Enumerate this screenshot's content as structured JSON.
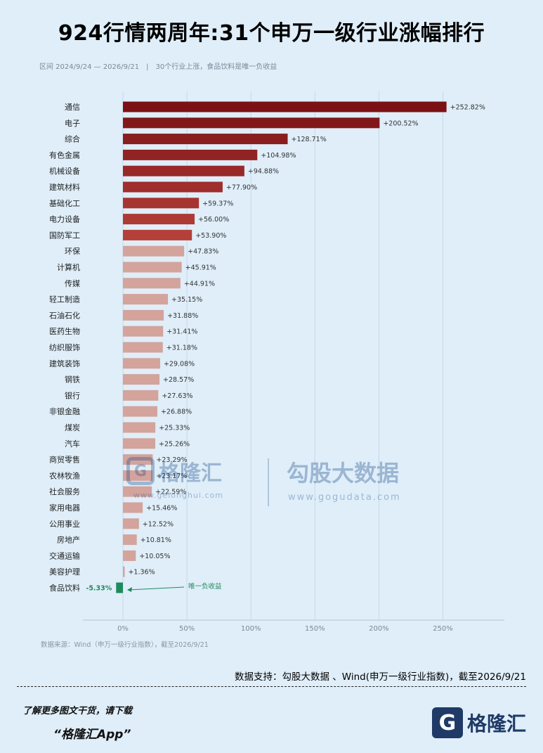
{
  "title": "924行情两周年:31个申万一级行业涨幅排行",
  "subtitle": {
    "range": "区间 2024/9/24 — 2026/9/21",
    "sep": "|",
    "note": "30个行业上涨，食品饮料是唯一负收益"
  },
  "chart_data": {
    "type": "bar",
    "orientation": "horizontal",
    "categories": [
      "通信",
      "电子",
      "综合",
      "有色金属",
      "机械设备",
      "建筑材料",
      "基础化工",
      "电力设备",
      "国防军工",
      "环保",
      "计算机",
      "传媒",
      "轻工制造",
      "石油石化",
      "医药生物",
      "纺织服饰",
      "建筑装饰",
      "钢铁",
      "银行",
      "非银金融",
      "煤炭",
      "汽车",
      "商贸零售",
      "农林牧渔",
      "社会服务",
      "家用电器",
      "公用事业",
      "房地产",
      "交通运输",
      "美容护理",
      "食品饮料"
    ],
    "values": [
      252.82,
      200.52,
      128.71,
      104.98,
      94.88,
      77.9,
      59.37,
      56.0,
      53.9,
      47.83,
      45.91,
      44.91,
      35.15,
      31.88,
      31.41,
      31.18,
      29.08,
      28.57,
      27.63,
      26.88,
      25.33,
      25.26,
      23.29,
      23.17,
      22.59,
      15.46,
      12.52,
      10.81,
      10.05,
      1.36,
      -5.33
    ],
    "value_labels": [
      "+252.82%",
      "+200.52%",
      "+128.71%",
      "+104.98%",
      "+94.88%",
      "+77.90%",
      "+59.37%",
      "+56.00%",
      "+53.90%",
      "+47.83%",
      "+45.91%",
      "+44.91%",
      "+35.15%",
      "+31.88%",
      "+31.41%",
      "+31.18%",
      "+29.08%",
      "+28.57%",
      "+27.63%",
      "+26.88%",
      "+25.33%",
      "+25.26%",
      "+23.29%",
      "+23.17%",
      "+22.59%",
      "+15.46%",
      "+12.52%",
      "+10.81%",
      "+10.05%",
      "+1.36%",
      "-5.33%"
    ],
    "xlim": [
      0,
      270
    ],
    "xticks": [
      0,
      50,
      100,
      150,
      200,
      250
    ],
    "xtick_labels": [
      "0%",
      "50%",
      "100%",
      "150%",
      "200%",
      "250%"
    ],
    "grid": true,
    "annotation": "唯一负收益",
    "colors": {
      "top_gradient_dark": "#7b1115",
      "top_gradient_light": "#b5403a",
      "mid": "#d3a39c",
      "negative": "#1f8a5c"
    }
  },
  "source": "数据来源：Wind（申万一级行业指数），截至2026/9/21",
  "support": "数据支持：勾股大数据 、Wind(申万一级行业指数)，截至2026/9/21",
  "footer": {
    "promo": "了解更多图文干货，请下载",
    "app": "“格隆汇App”",
    "brand": "格隆汇",
    "brand_mark": "G"
  },
  "watermarks": {
    "left_brand": "格隆汇",
    "left_url": "www.gelonghui.com",
    "right_brand": "勾股大数据",
    "right_url": "www.gogudata.com"
  }
}
